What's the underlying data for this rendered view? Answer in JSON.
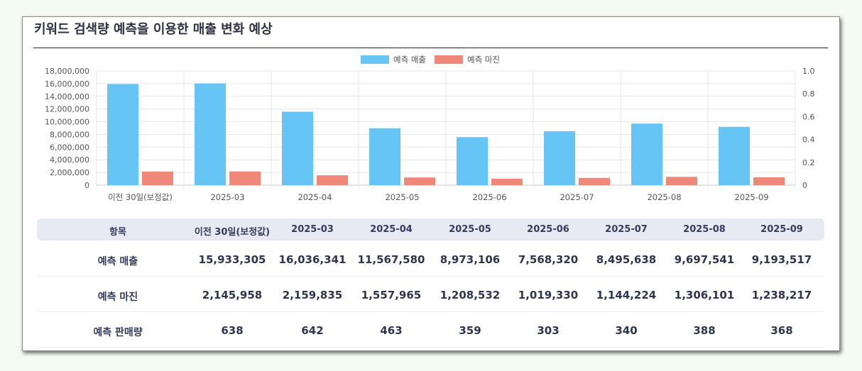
{
  "title": "키워드 검색량 예측을 이용한 매출 변화 예상",
  "chart_data": {
    "type": "bar",
    "categories": [
      "이전 30일(보정값)",
      "2025-03",
      "2025-04",
      "2025-05",
      "2025-06",
      "2025-07",
      "2025-08",
      "2025-09"
    ],
    "series": [
      {
        "name": "예측 매출",
        "color": "#66c5f5",
        "values": [
          15933305,
          16036341,
          11567580,
          8973106,
          7568320,
          8495638,
          9697541,
          9193517
        ]
      },
      {
        "name": "예측 마진",
        "color": "#f0887a",
        "values": [
          2145958,
          2159835,
          1557965,
          1208532,
          1019330,
          1144224,
          1306101,
          1238217
        ]
      }
    ],
    "ylim": [
      0,
      18000000
    ],
    "yticks": [
      "0",
      "2,000,000",
      "4,000,000",
      "6,000,000",
      "8,000,000",
      "10,000,000",
      "12,000,000",
      "14,000,000",
      "16,000,000",
      "18,000,000"
    ],
    "y2lim": [
      0,
      1
    ],
    "y2ticks": [
      "0",
      "0.2",
      "0.4",
      "0.6",
      "0.8",
      "1.0"
    ],
    "legend_position": "top-center",
    "grid": true
  },
  "table": {
    "headers": [
      "항목",
      "이전 30일(보정값)",
      "2025-03",
      "2025-04",
      "2025-05",
      "2025-06",
      "2025-07",
      "2025-08",
      "2025-09"
    ],
    "rows": [
      {
        "label": "예측 매출",
        "values": [
          "15,933,305",
          "16,036,341",
          "11,567,580",
          "8,973,106",
          "7,568,320",
          "8,495,638",
          "9,697,541",
          "9,193,517"
        ]
      },
      {
        "label": "예측 마진",
        "values": [
          "2,145,958",
          "2,159,835",
          "1,557,965",
          "1,208,532",
          "1,019,330",
          "1,144,224",
          "1,306,101",
          "1,238,217"
        ]
      },
      {
        "label": "예측 판매량",
        "values": [
          "638",
          "642",
          "463",
          "359",
          "303",
          "340",
          "388",
          "368"
        ]
      }
    ]
  }
}
